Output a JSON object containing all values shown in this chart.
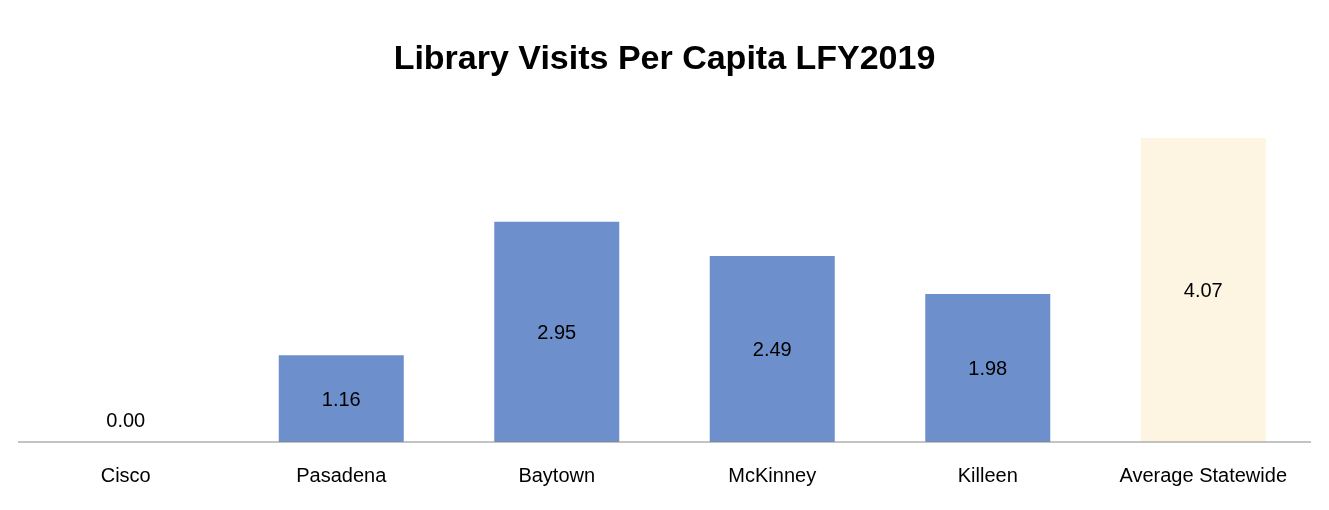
{
  "chart_data": {
    "type": "bar",
    "title": "Library Visits Per Capita LFY2019",
    "categories": [
      "Cisco",
      "Pasadena",
      "Baytown",
      "McKinney",
      "Killeen",
      "Average Statewide"
    ],
    "values": [
      0.0,
      1.16,
      2.95,
      2.49,
      1.98,
      4.07
    ],
    "colors": [
      "#6d8fcb",
      "#6d8fcb",
      "#6d8fcb",
      "#6d8fcb",
      "#6d8fcb",
      "#fdf5e1"
    ],
    "value_labels": [
      "0.00",
      "1.16",
      "2.95",
      "2.49",
      "1.98",
      "4.07"
    ],
    "grid": false,
    "legend": false
  }
}
